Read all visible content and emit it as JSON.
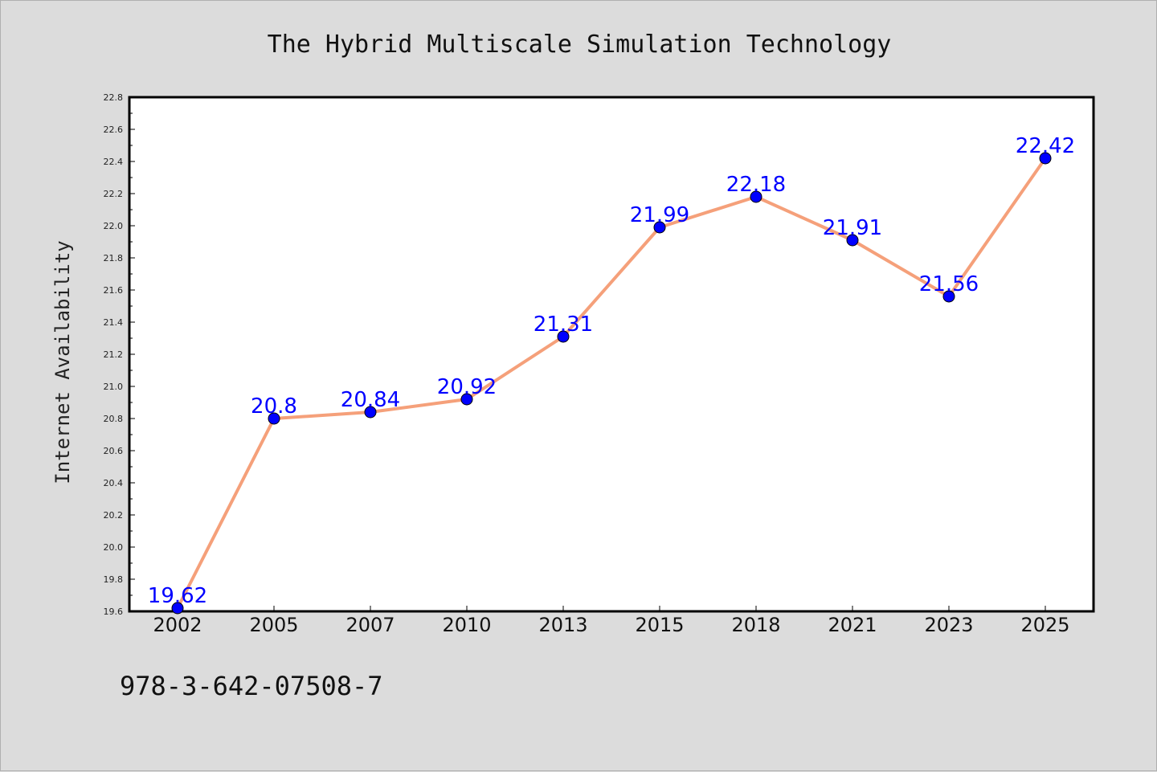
{
  "chart_data": {
    "type": "line",
    "title": "The Hybrid Multiscale Simulation Technology",
    "xlabel": "",
    "ylabel": "Internet Availability",
    "categories": [
      "2002",
      "2005",
      "2007",
      "2010",
      "2013",
      "2015",
      "2018",
      "2021",
      "2023",
      "2025"
    ],
    "series": [
      {
        "values": [
          19.62,
          20.8,
          20.84,
          20.92,
          21.31,
          21.99,
          22.18,
          21.91,
          21.56,
          22.42
        ],
        "data_labels": [
          "19.62",
          "20.8",
          "20.84",
          "20.92",
          "21.31",
          "21.99",
          "22.18",
          "21.91",
          "21.56",
          "22.42"
        ],
        "line_color": "#f5a07a",
        "marker_color": "#0000ff",
        "label_color": "#0000ff"
      }
    ],
    "ylim": [
      19.6,
      22.8
    ],
    "yticks": [
      "19.6",
      "19.8",
      "20.0",
      "20.2",
      "20.4",
      "20.6",
      "20.8",
      "21.0",
      "21.2",
      "21.4",
      "21.6",
      "21.8",
      "22.0",
      "22.2",
      "22.4",
      "22.6",
      "22.8"
    ],
    "grid": false,
    "legend": "none",
    "background_color": "#dcdcdc",
    "plot_background_color": "#ffffff"
  },
  "footer": {
    "isbn": "978-3-642-07508-7"
  }
}
